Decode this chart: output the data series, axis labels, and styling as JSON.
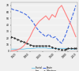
{
  "title": "",
  "years": [
    1800,
    1810,
    1820,
    1830,
    1840,
    1850,
    1860,
    1870,
    1880,
    1890,
    1900,
    1910,
    1920,
    1930,
    1940,
    1950,
    1960,
    1970,
    1975,
    1980,
    1990,
    2000,
    2005
  ],
  "fluvial": [
    3,
    3,
    3,
    3,
    3,
    4,
    4,
    4,
    5,
    5,
    5,
    5,
    4,
    4,
    4,
    4,
    4,
    4,
    4,
    4,
    3,
    3,
    3
  ],
  "iron": [
    0,
    1,
    2,
    4,
    8,
    14,
    22,
    32,
    40,
    46,
    50,
    54,
    48,
    56,
    52,
    65,
    70,
    60,
    55,
    50,
    40,
    28,
    22
  ],
  "route": [
    65,
    63,
    62,
    60,
    58,
    55,
    50,
    44,
    36,
    30,
    26,
    22,
    26,
    20,
    22,
    16,
    12,
    22,
    28,
    35,
    48,
    62,
    70
  ],
  "cabotage": [
    22,
    20,
    18,
    16,
    14,
    12,
    10,
    8,
    8,
    8,
    8,
    8,
    8,
    6,
    4,
    3,
    2,
    2,
    3,
    4,
    4,
    4,
    4
  ],
  "fluvial_color": "#87CEEB",
  "iron_color": "#FF8080",
  "route_color": "#4169E1",
  "cabotage_color": "#222222",
  "bg_color": "#f0f0f0",
  "grid_color": "#ffffff",
  "ylim": [
    0,
    75
  ],
  "yticks": [
    0,
    10,
    20,
    30,
    40,
    50,
    60,
    70
  ],
  "xlim": [
    1800,
    2010
  ],
  "xticks": [
    1820,
    1860,
    1900,
    1940,
    1980,
    2010
  ],
  "legend_labels": [
    "Fluvial",
    "Iron",
    "Route",
    "Cabotage"
  ]
}
